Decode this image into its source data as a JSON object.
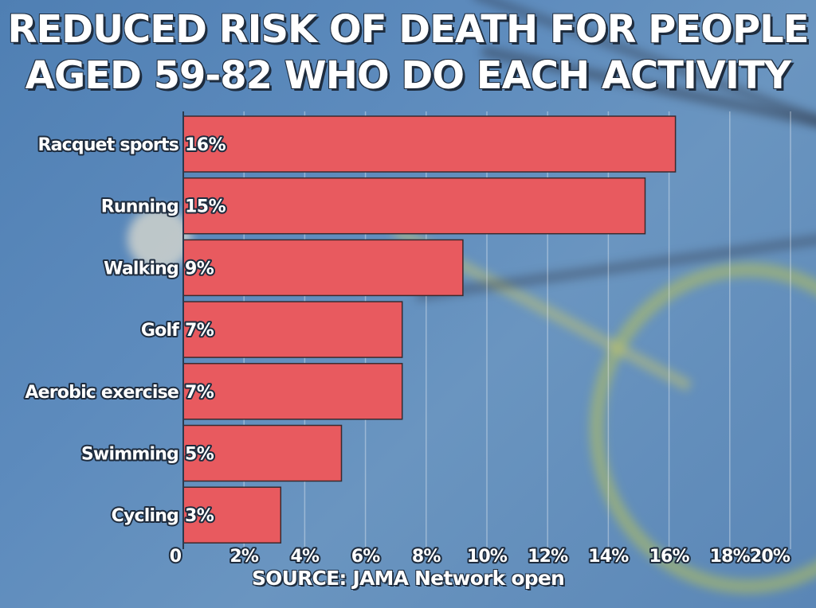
{
  "chart_data": {
    "type": "bar",
    "orientation": "horizontal",
    "title_lines": [
      "REDUCED RISK OF DEATH FOR PEOPLE",
      "AGED 59-82 WHO DO EACH ACTIVITY"
    ],
    "categories": [
      "Racquet sports",
      "Running",
      "Walking",
      "Golf",
      "Aerobic exercise",
      "Swimming",
      "Cycling"
    ],
    "values": [
      16,
      15,
      9,
      7,
      7,
      5,
      3
    ],
    "value_labels": [
      "16%",
      "15%",
      "9%",
      "7%",
      "7%",
      "5%",
      "3%"
    ],
    "xlim": [
      0,
      20
    ],
    "x_ticks": [
      0,
      2,
      4,
      6,
      8,
      10,
      12,
      14,
      16,
      18,
      20
    ],
    "x_tick_labels": [
      "0",
      "2%",
      "4%",
      "6%",
      "8%",
      "10%",
      "12%",
      "14%",
      "16%",
      "18%",
      "20%"
    ],
    "grid": true,
    "bar_color": "#e85a5f",
    "source": "SOURCE: JAMA Network open"
  }
}
